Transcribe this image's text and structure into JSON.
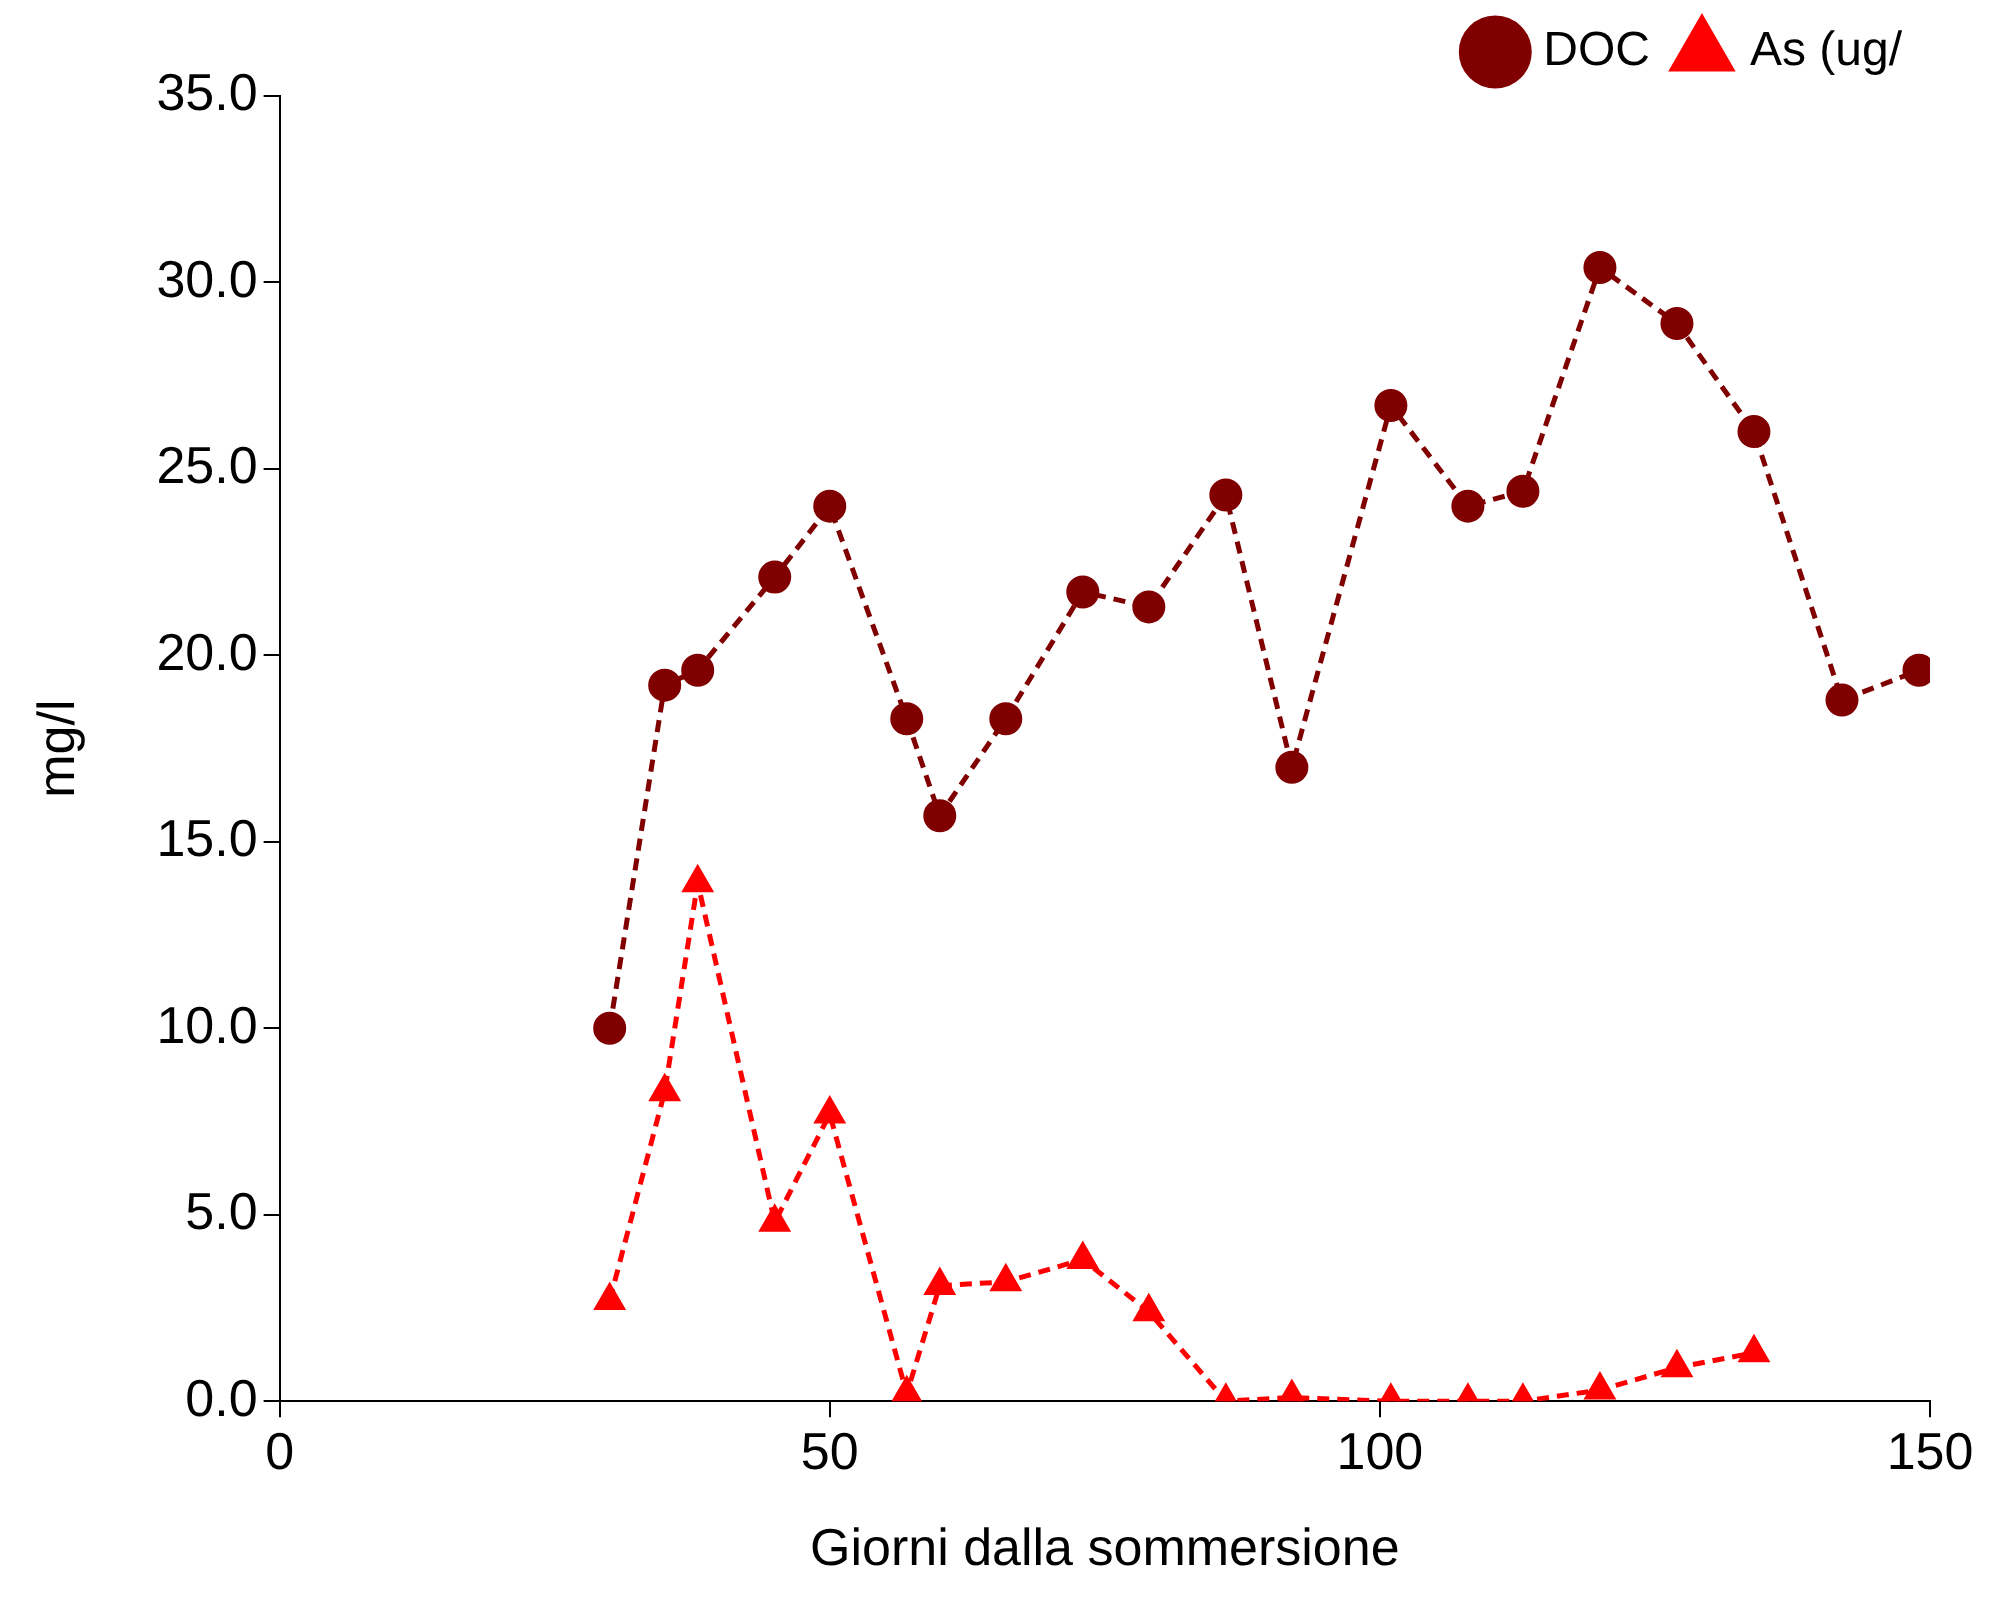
{
  "chart_data": {
    "type": "line",
    "xlabel": "Giorni dalla sommersione",
    "ylabel": "mg/l",
    "xlim": [
      0,
      150
    ],
    "xticks": [
      0,
      50,
      100,
      150
    ],
    "ylim": [
      0,
      35
    ],
    "yticks": [
      {
        "value": 0,
        "label": "0.0"
      },
      {
        "value": 5,
        "label": "5.0"
      },
      {
        "value": 10,
        "label": "10.0"
      },
      {
        "value": 15,
        "label": "15.0"
      },
      {
        "value": 20,
        "label": "20.0"
      },
      {
        "value": 25,
        "label": "25.0"
      },
      {
        "value": 30,
        "label": "30.0"
      },
      {
        "value": 35,
        "label": "35.0"
      }
    ],
    "grid": false,
    "legend": "top right",
    "line_style": "dashed",
    "series": [
      {
        "name": "DOC",
        "color": "#800000",
        "marker": "circle",
        "x": [
          30,
          35,
          38,
          45,
          50,
          57,
          60,
          66,
          73,
          79,
          86,
          92,
          101,
          108,
          113,
          120,
          127,
          134,
          142,
          149
        ],
        "values": [
          10.0,
          19.2,
          19.6,
          22.1,
          24.0,
          18.3,
          15.7,
          18.3,
          21.7,
          21.3,
          24.3,
          17.0,
          26.7,
          24.0,
          24.4,
          30.4,
          28.9,
          26.0,
          18.8,
          19.6
        ]
      },
      {
        "name": "As (ug/",
        "color": "#ff0000",
        "marker": "triangle",
        "x": [
          30,
          35,
          38,
          45,
          50,
          57,
          60,
          66,
          73,
          79,
          86,
          92,
          101,
          108,
          113,
          120,
          127,
          134
        ],
        "values": [
          2.7,
          8.3,
          13.9,
          4.8,
          7.7,
          0.2,
          3.1,
          3.2,
          3.8,
          2.4,
          0,
          0.1,
          0,
          0,
          0,
          0.3,
          0.9,
          1.3
        ]
      }
    ]
  }
}
